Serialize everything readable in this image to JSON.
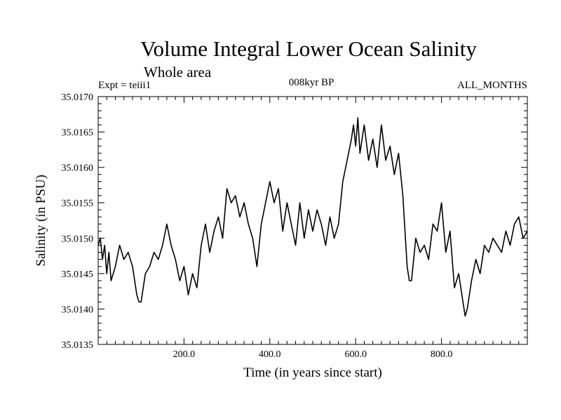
{
  "header": {
    "title": "Volume Integral Lower Ocean Salinity",
    "subtitle": "Whole area",
    "expt": "Expt = teiii1",
    "period": "008kyr BP",
    "months": "ALL_MONTHS"
  },
  "chart_data": {
    "type": "line",
    "title": "Volume Integral Lower Ocean Salinity",
    "subtitle": "Whole area",
    "xlabel": "Time (in years since start)",
    "ylabel": "Salinity (in PSU)",
    "xlim": [
      0,
      1000
    ],
    "ylim": [
      35.0135,
      35.017
    ],
    "xticks": [
      200,
      400,
      600,
      800
    ],
    "xtick_labels": [
      "200.0",
      "400.0",
      "600.0",
      "800.0"
    ],
    "yticks": [
      35.0135,
      35.014,
      35.0145,
      35.015,
      35.0155,
      35.016,
      35.0165,
      35.017
    ],
    "ytick_labels": [
      "35.0135",
      "35.0140",
      "35.0145",
      "35.0150",
      "35.0155",
      "35.0160",
      "35.0165",
      "35.0170"
    ],
    "grid": false,
    "series": [
      {
        "color": "#000000",
        "x": [
          0,
          5,
          10,
          15,
          20,
          25,
          30,
          40,
          50,
          60,
          70,
          80,
          90,
          95,
          100,
          110,
          120,
          130,
          140,
          150,
          160,
          170,
          180,
          190,
          200,
          210,
          220,
          230,
          240,
          250,
          260,
          270,
          280,
          290,
          300,
          310,
          320,
          330,
          340,
          350,
          360,
          370,
          380,
          390,
          400,
          410,
          420,
          430,
          440,
          450,
          460,
          470,
          480,
          490,
          500,
          510,
          520,
          530,
          540,
          550,
          560,
          570,
          580,
          590,
          595,
          600,
          605,
          610,
          620,
          630,
          640,
          650,
          660,
          670,
          680,
          690,
          700,
          710,
          720,
          725,
          730,
          740,
          750,
          760,
          770,
          780,
          790,
          800,
          810,
          820,
          830,
          840,
          850,
          855,
          860,
          870,
          880,
          890,
          900,
          910,
          920,
          930,
          940,
          950,
          960,
          970,
          980,
          990,
          1000
        ],
        "y": [
          35.0149,
          35.015,
          35.0147,
          35.0149,
          35.0145,
          35.0148,
          35.0144,
          35.0146,
          35.0149,
          35.0147,
          35.0148,
          35.0146,
          35.0142,
          35.0141,
          35.0141,
          35.0145,
          35.0146,
          35.0148,
          35.0147,
          35.0149,
          35.0152,
          35.0149,
          35.0147,
          35.0144,
          35.0146,
          35.0142,
          35.0145,
          35.0143,
          35.0149,
          35.0152,
          35.0148,
          35.0151,
          35.0153,
          35.015,
          35.0157,
          35.0155,
          35.0156,
          35.0153,
          35.0155,
          35.0152,
          35.015,
          35.0146,
          35.0152,
          35.0155,
          35.0158,
          35.0155,
          35.0157,
          35.0151,
          35.0155,
          35.0152,
          35.0149,
          35.0155,
          35.015,
          35.0154,
          35.0151,
          35.0154,
          35.0152,
          35.0149,
          35.0153,
          35.015,
          35.0152,
          35.0158,
          35.0161,
          35.0164,
          35.0166,
          35.0163,
          35.0167,
          35.0162,
          35.0166,
          35.0161,
          35.0164,
          35.016,
          35.0166,
          35.0161,
          35.0163,
          35.0159,
          35.0162,
          35.0156,
          35.0146,
          35.0144,
          35.0144,
          35.015,
          35.0148,
          35.0149,
          35.0147,
          35.0152,
          35.0151,
          35.0155,
          35.0148,
          35.0151,
          35.0143,
          35.0145,
          35.0141,
          35.0139,
          35.014,
          35.0144,
          35.0147,
          35.0145,
          35.0149,
          35.0148,
          35.015,
          35.0149,
          35.0148,
          35.0151,
          35.0149,
          35.0152,
          35.0153,
          35.015,
          35.0151
        ]
      }
    ]
  }
}
